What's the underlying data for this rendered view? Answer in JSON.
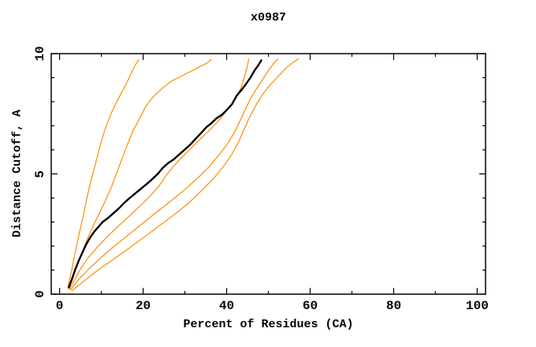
{
  "chart_data": {
    "type": "line",
    "title": "x0987",
    "xlabel": "Percent of Residues (CA)",
    "ylabel": "Distance Cutoff, A",
    "xlim": [
      -2,
      102
    ],
    "ylim": [
      0,
      10
    ],
    "x_major_ticks": [
      0,
      20,
      40,
      60,
      80,
      100
    ],
    "x_minor_ticks": [
      10,
      30,
      50,
      70,
      90
    ],
    "y_major_ticks": [
      0,
      5,
      10
    ],
    "y_minor_ticks": [
      1,
      2,
      3,
      4,
      6,
      7,
      8,
      9
    ],
    "grid": false,
    "legend_position": "none",
    "colors": {
      "reference_curve": "#000000",
      "comparison_curves": "#ff8c00",
      "axis": "#000000"
    },
    "series": [
      {
        "name": "orange-curve-1",
        "color": "#ff8c00",
        "width": 1.2,
        "points": [
          [
            2.0,
            0.3
          ],
          [
            2.4,
            0.62
          ],
          [
            2.9,
            1.0
          ],
          [
            3.4,
            1.45
          ],
          [
            4.0,
            1.95
          ],
          [
            4.6,
            2.45
          ],
          [
            5.2,
            2.9
          ],
          [
            5.9,
            3.45
          ],
          [
            6.5,
            3.95
          ],
          [
            7.2,
            4.5
          ],
          [
            8.0,
            5.05
          ],
          [
            8.8,
            5.55
          ],
          [
            9.6,
            6.1
          ],
          [
            10.4,
            6.6
          ],
          [
            11.3,
            7.05
          ],
          [
            12.3,
            7.5
          ],
          [
            13.4,
            7.9
          ],
          [
            14.6,
            8.3
          ],
          [
            15.7,
            8.65
          ],
          [
            16.8,
            9.05
          ],
          [
            17.9,
            9.45
          ],
          [
            18.9,
            9.75
          ]
        ]
      },
      {
        "name": "orange-curve-2",
        "color": "#ff8c00",
        "width": 1.2,
        "points": [
          [
            2.1,
            0.25
          ],
          [
            3.0,
            0.7
          ],
          [
            4.1,
            1.2
          ],
          [
            5.4,
            1.75
          ],
          [
            6.8,
            2.35
          ],
          [
            8.2,
            2.9
          ],
          [
            9.6,
            3.4
          ],
          [
            11.0,
            3.9
          ],
          [
            12.4,
            4.45
          ],
          [
            13.6,
            5.0
          ],
          [
            14.9,
            5.6
          ],
          [
            16.2,
            6.2
          ],
          [
            17.6,
            6.8
          ],
          [
            19.0,
            7.25
          ],
          [
            20.6,
            7.8
          ],
          [
            22.4,
            8.2
          ],
          [
            24.5,
            8.55
          ],
          [
            26.7,
            8.85
          ],
          [
            29.0,
            9.05
          ],
          [
            31.3,
            9.25
          ],
          [
            33.5,
            9.45
          ],
          [
            35.2,
            9.6
          ],
          [
            36.3,
            9.75
          ]
        ]
      },
      {
        "name": "orange-curve-3",
        "color": "#ff8c00",
        "width": 1.2,
        "points": [
          [
            2.4,
            0.2
          ],
          [
            3.6,
            0.6
          ],
          [
            5.0,
            1.05
          ],
          [
            6.8,
            1.5
          ],
          [
            9.0,
            1.95
          ],
          [
            11.5,
            2.4
          ],
          [
            14.2,
            2.85
          ],
          [
            17.0,
            3.3
          ],
          [
            19.5,
            3.7
          ],
          [
            21.8,
            4.1
          ],
          [
            23.8,
            4.5
          ],
          [
            25.6,
            4.95
          ],
          [
            27.2,
            5.3
          ],
          [
            28.8,
            5.6
          ],
          [
            30.5,
            5.9
          ],
          [
            32.2,
            6.2
          ],
          [
            34.0,
            6.5
          ],
          [
            35.8,
            6.8
          ],
          [
            37.5,
            7.1
          ],
          [
            39.2,
            7.45
          ],
          [
            40.8,
            7.8
          ],
          [
            42.3,
            8.2
          ],
          [
            43.5,
            8.6
          ],
          [
            44.4,
            9.1
          ],
          [
            45.0,
            9.5
          ],
          [
            45.3,
            9.78
          ]
        ]
      },
      {
        "name": "black-reference-curve",
        "color": "#000000",
        "width": 2.4,
        "points": [
          [
            2.2,
            0.28
          ],
          [
            2.9,
            0.6
          ],
          [
            3.7,
            1.0
          ],
          [
            4.6,
            1.4
          ],
          [
            5.4,
            1.7
          ],
          [
            6.3,
            2.05
          ],
          [
            7.3,
            2.35
          ],
          [
            8.3,
            2.6
          ],
          [
            9.3,
            2.8
          ],
          [
            10.3,
            3.0
          ],
          [
            11.5,
            3.15
          ],
          [
            12.8,
            3.35
          ],
          [
            14.1,
            3.55
          ],
          [
            15.5,
            3.8
          ],
          [
            16.8,
            4.0
          ],
          [
            18.2,
            4.2
          ],
          [
            19.6,
            4.4
          ],
          [
            21.0,
            4.6
          ],
          [
            22.3,
            4.8
          ],
          [
            23.5,
            5.0
          ],
          [
            24.7,
            5.25
          ],
          [
            26.0,
            5.45
          ],
          [
            27.3,
            5.6
          ],
          [
            28.6,
            5.8
          ],
          [
            29.9,
            6.0
          ],
          [
            31.2,
            6.2
          ],
          [
            32.5,
            6.45
          ],
          [
            33.9,
            6.7
          ],
          [
            35.2,
            6.95
          ],
          [
            36.3,
            7.1
          ],
          [
            37.5,
            7.3
          ],
          [
            38.8,
            7.45
          ],
          [
            40.0,
            7.65
          ],
          [
            41.3,
            7.9
          ],
          [
            42.4,
            8.25
          ],
          [
            43.6,
            8.5
          ],
          [
            44.7,
            8.75
          ],
          [
            45.7,
            9.0
          ],
          [
            46.7,
            9.3
          ],
          [
            47.5,
            9.5
          ],
          [
            48.3,
            9.72
          ]
        ]
      },
      {
        "name": "orange-curve-4",
        "color": "#ff8c00",
        "width": 1.2,
        "points": [
          [
            2.6,
            0.18
          ],
          [
            4.5,
            0.6
          ],
          [
            7.0,
            1.05
          ],
          [
            9.8,
            1.5
          ],
          [
            12.8,
            1.95
          ],
          [
            16.0,
            2.4
          ],
          [
            19.2,
            2.85
          ],
          [
            22.4,
            3.3
          ],
          [
            25.4,
            3.7
          ],
          [
            28.3,
            4.1
          ],
          [
            31.0,
            4.5
          ],
          [
            33.5,
            4.9
          ],
          [
            35.8,
            5.3
          ],
          [
            38.0,
            5.75
          ],
          [
            40.0,
            6.2
          ],
          [
            41.8,
            6.7
          ],
          [
            43.2,
            7.2
          ],
          [
            44.5,
            7.7
          ],
          [
            45.8,
            8.15
          ],
          [
            47.2,
            8.55
          ],
          [
            48.7,
            8.95
          ],
          [
            50.0,
            9.3
          ],
          [
            51.3,
            9.6
          ],
          [
            52.3,
            9.78
          ]
        ]
      },
      {
        "name": "orange-curve-5",
        "color": "#ff8c00",
        "width": 1.2,
        "points": [
          [
            3.0,
            0.15
          ],
          [
            5.5,
            0.5
          ],
          [
            8.8,
            0.95
          ],
          [
            12.5,
            1.4
          ],
          [
            16.5,
            1.9
          ],
          [
            20.5,
            2.4
          ],
          [
            24.3,
            2.9
          ],
          [
            27.8,
            3.35
          ],
          [
            31.0,
            3.8
          ],
          [
            34.0,
            4.3
          ],
          [
            36.8,
            4.8
          ],
          [
            39.2,
            5.3
          ],
          [
            41.2,
            5.8
          ],
          [
            42.9,
            6.35
          ],
          [
            44.3,
            6.9
          ],
          [
            45.6,
            7.4
          ],
          [
            47.0,
            7.85
          ],
          [
            48.6,
            8.3
          ],
          [
            50.4,
            8.7
          ],
          [
            52.3,
            9.05
          ],
          [
            54.2,
            9.4
          ],
          [
            56.0,
            9.65
          ],
          [
            57.2,
            9.78
          ]
        ]
      }
    ]
  }
}
